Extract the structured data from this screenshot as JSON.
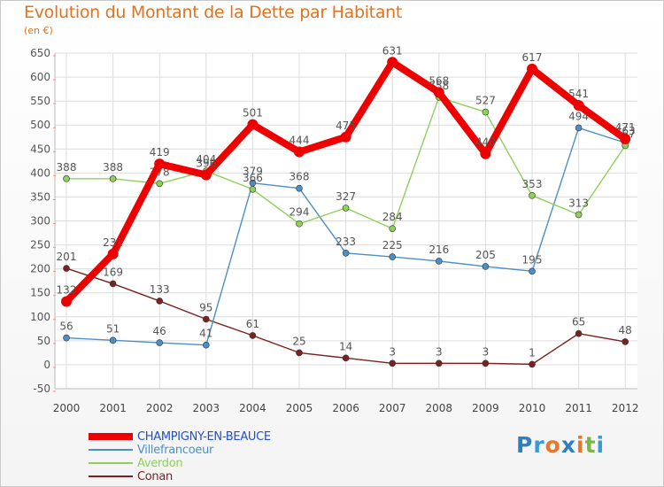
{
  "title": "Evolution du Montant de la Dette par Habitant",
  "unit": "(en €)",
  "logo": {
    "letters": [
      {
        "ch": "P",
        "color": "#2e7fc0"
      },
      {
        "ch": "r",
        "color": "#3a9ad9"
      },
      {
        "ch": "o",
        "color": "#e8762b"
      },
      {
        "ch": "x",
        "color": "#2e7fc0"
      },
      {
        "ch": "i",
        "color": "#e8762b"
      },
      {
        "ch": "t",
        "color": "#7ab648"
      },
      {
        "ch": "i",
        "color": "#3a9ad9"
      }
    ]
  },
  "chart_data": {
    "type": "line",
    "title": "Evolution du Montant de la Dette par Habitant",
    "ylabel": "(en €)",
    "xlabel": "",
    "categories": [
      "2000",
      "2001",
      "2002",
      "2003",
      "2004",
      "2005",
      "2006",
      "2007",
      "2008",
      "2009",
      "2010",
      "2011",
      "2012"
    ],
    "ylim": [
      -50,
      650
    ],
    "yticks": [
      -50,
      0,
      50,
      100,
      150,
      200,
      250,
      300,
      350,
      400,
      450,
      500,
      550,
      600,
      650
    ],
    "grid": true,
    "legend_position": "bottom-left",
    "series": [
      {
        "name": "Conan",
        "color": "#7a2222",
        "values": [
          201,
          169,
          133,
          95,
          61,
          25,
          14,
          3,
          3,
          3,
          1,
          65,
          48
        ],
        "labels": [
          "201",
          "169",
          "133",
          "95",
          "61",
          "25",
          "14",
          "3",
          "3",
          "3",
          "1",
          "65",
          "48"
        ]
      },
      {
        "name": "Villefrancoeur",
        "color": "#4a90c8",
        "values": [
          56,
          51,
          46,
          41,
          379,
          368,
          233,
          225,
          216,
          205,
          195,
          494,
          463
        ],
        "labels": [
          "56",
          "51",
          "46",
          "41",
          "379",
          "368",
          "233",
          "225",
          "216",
          "205",
          "195",
          "494",
          "463"
        ]
      },
      {
        "name": "Averdon",
        "color": "#8ed05a",
        "values": [
          388,
          388,
          378,
          404,
          366,
          294,
          327,
          284,
          558,
          527,
          353,
          313,
          457
        ],
        "labels": [
          "388",
          "388",
          "378",
          "404",
          "366",
          "294",
          "327",
          "284",
          "558",
          "527",
          "353",
          "313",
          "457"
        ]
      },
      {
        "name": "CHAMPIGNY-EN-BEAUCE",
        "color": "#ee0000",
        "values": [
          132,
          231,
          419,
          396,
          501,
          444,
          475,
          631,
          568,
          440,
          617,
          541,
          471
        ],
        "labels": [
          "132",
          "231",
          "419",
          "396",
          "501",
          "444",
          "475",
          "631",
          "568",
          "440",
          "617",
          "541",
          "471"
        ]
      }
    ]
  }
}
